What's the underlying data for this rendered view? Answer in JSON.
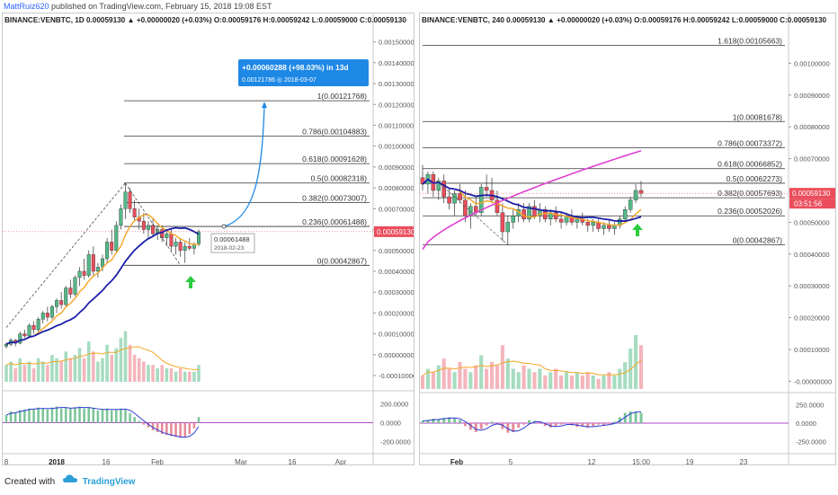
{
  "header": {
    "author": "MattRuiz620",
    "published": "published on TradingView.com, February 15, 2018 19:08 EST"
  },
  "footer": {
    "created_with": "Created with",
    "brand": "TradingView"
  },
  "colors": {
    "up": "#53b987",
    "down": "#eb4d5c",
    "ma_orange": "#f5a623",
    "ma_blue": "#1a1ea8",
    "ma_magenta": "#e040d0",
    "fib_line": "#222222",
    "price_badge": "#eb4d5c",
    "projection": "#1e88e5",
    "arrow_green": "#2ecc40"
  },
  "chart_data": [
    {
      "type": "line",
      "symbol_line": "BINANCE:VENBTC, 1D  0.00059130 ▲ +0.00000020 (+0.03%) O:0.00059176 H:0.00059242 L:0.00059000 C:0.00059130",
      "interval": "1D",
      "price_axis": {
        "ticks": [
          "0.00150000",
          "0.00140000",
          "0.00130000",
          "0.00120000",
          "0.00110000",
          "0.00100000",
          "0.00090000",
          "0.00080000",
          "0.00070000",
          "0.00060000",
          "0.00050000",
          "0.00040000",
          "0.00030000",
          "0.00020000",
          "0.00010000",
          "0.00000000",
          "-0.00010000"
        ],
        "range": [
          -0.00013,
          0.00155
        ]
      },
      "oscillator_axis": {
        "ticks": [
          "200.0000",
          "0.0000",
          "-200.0000"
        ],
        "range": [
          -270,
          280
        ]
      },
      "x_axis_labels": [
        "8",
        "2018",
        "16",
        "Feb",
        "Mar",
        "16",
        "Apr"
      ],
      "current_price_label": "0.00059130",
      "fib_levels": [
        {
          "ratio": 1,
          "price": 0.00121768,
          "label": "1(0.00121768)"
        },
        {
          "ratio": 0.786,
          "price": 0.00104883,
          "label": "0.786(0.00104883)"
        },
        {
          "ratio": 0.618,
          "price": 0.00091628,
          "label": "0.618(0.00091628)"
        },
        {
          "ratio": 0.5,
          "price": 0.00082318,
          "label": "0.5(0.00082318)"
        },
        {
          "ratio": 0.382,
          "price": 0.00073007,
          "label": "0.382(0.00073007)"
        },
        {
          "ratio": 0.236,
          "price": 0.00061488,
          "label": "0.236(0.00061488)"
        },
        {
          "ratio": 0,
          "price": 0.00042867,
          "label": "0(0.00042867)"
        }
      ],
      "projection": {
        "label": "+0.00060288 (+98.03%) in 13d",
        "sublabel": "0.00121786  ◎ 2018-03-07",
        "target_price": 0.00121786
      },
      "point_marker": {
        "price_label": "0.00061488",
        "date_label": "2018-02-23",
        "price": 0.00061488
      },
      "candles": [
        [
          4e-05,
          6e-05,
          3e-05,
          5e-05
        ],
        [
          5e-05,
          8e-05,
          4e-05,
          7e-05
        ],
        [
          7e-05,
          7.5e-05,
          4e-05,
          5.5e-05
        ],
        [
          5.5e-05,
          0.00011,
          5e-05,
          0.0001
        ],
        [
          0.0001,
          0.00012,
          8e-05,
          9e-05
        ],
        [
          9e-05,
          0.00015,
          8.5e-05,
          0.00014
        ],
        [
          0.00014,
          0.00016,
          0.0001,
          0.00012
        ],
        [
          0.00012,
          0.00018,
          0.00011,
          0.00017
        ],
        [
          0.00017,
          0.00021,
          0.00015,
          0.0002
        ],
        [
          0.0002,
          0.00023,
          0.00016,
          0.00018
        ],
        [
          0.00018,
          0.00024,
          0.00017,
          0.00023
        ],
        [
          0.00023,
          0.00027,
          0.0002,
          0.00026
        ],
        [
          0.00026,
          0.0003,
          0.00022,
          0.00024
        ],
        [
          0.00024,
          0.00033,
          0.00023,
          0.00032
        ],
        [
          0.00032,
          0.00036,
          0.00027,
          0.00029
        ],
        [
          0.00029,
          0.00038,
          0.00028,
          0.00037
        ],
        [
          0.00037,
          0.00042,
          0.00033,
          0.0004
        ],
        [
          0.0004,
          0.00046,
          0.00036,
          0.00038
        ],
        [
          0.00038,
          0.0005,
          0.00037,
          0.00048
        ],
        [
          0.00048,
          0.00052,
          0.00038,
          0.0004
        ],
        [
          0.0004,
          0.00044,
          0.00037,
          0.00042
        ],
        [
          0.00042,
          0.00048,
          0.0004,
          0.00046
        ],
        [
          0.00046,
          0.00056,
          0.00044,
          0.00054
        ],
        [
          0.00054,
          0.0006,
          0.00048,
          0.0005
        ],
        [
          0.0005,
          0.00064,
          0.00049,
          0.00062
        ],
        [
          0.00062,
          0.00072,
          0.0006,
          0.0007
        ],
        [
          0.0007,
          0.000823,
          0.00065,
          0.00078
        ],
        [
          0.00078,
          0.0008,
          0.00068,
          0.0007
        ],
        [
          0.0007,
          0.00074,
          0.00064,
          0.00066
        ],
        [
          0.00066,
          0.0007,
          0.0006,
          0.00064
        ],
        [
          0.00064,
          0.00068,
          0.00058,
          0.0006
        ],
        [
          0.0006,
          0.00064,
          0.00056,
          0.00062
        ],
        [
          0.00062,
          0.00065,
          0.00057,
          0.00058
        ],
        [
          0.00058,
          0.00062,
          0.00055,
          0.0006
        ],
        [
          0.0006,
          0.00062,
          0.00054,
          0.00056
        ],
        [
          0.00056,
          0.0006,
          0.00052,
          0.00058
        ],
        [
          0.00058,
          0.0006,
          0.0005,
          0.00052
        ],
        [
          0.00052,
          0.00056,
          0.00048,
          0.00054
        ],
        [
          0.00054,
          0.00056,
          0.00047,
          0.0005
        ],
        [
          0.0005,
          0.00054,
          0.00044,
          0.00052
        ],
        [
          0.00052,
          0.00056,
          0.0005,
          0.00051
        ],
        [
          0.00051,
          0.00054,
          0.00048,
          0.00053
        ],
        [
          0.00053,
          0.0006,
          0.00052,
          0.00059
        ]
      ],
      "volume": [
        0.5,
        0.6,
        0.4,
        0.7,
        0.5,
        0.6,
        0.4,
        0.7,
        0.6,
        0.5,
        0.8,
        0.7,
        0.6,
        0.9,
        0.7,
        0.8,
        1.0,
        0.7,
        1.2,
        0.9,
        0.6,
        0.7,
        1.1,
        0.8,
        1.0,
        1.3,
        1.5,
        1.1,
        0.8,
        0.7,
        0.6,
        0.5,
        0.5,
        0.4,
        0.5,
        0.4,
        0.4,
        0.3,
        0.4,
        0.3,
        0.3,
        0.3,
        0.5
      ],
      "oscillator": [
        80,
        120,
        110,
        130,
        140,
        150,
        140,
        160,
        150,
        140,
        160,
        170,
        150,
        160,
        150,
        160,
        170,
        150,
        160,
        150,
        130,
        140,
        150,
        130,
        140,
        150,
        140,
        100,
        60,
        20,
        -20,
        -50,
        -80,
        -100,
        -120,
        -130,
        -140,
        -150,
        -160,
        -150,
        -120,
        -60,
        60
      ]
    },
    {
      "type": "line",
      "symbol_line": "BINANCE:VENBTC, 240  0.00059130 ▲ +0.00000020 (+0.03%) O:0.00059176 H:0.00059242 L:0.00059000 C:0.00059130",
      "interval": "240",
      "price_axis": {
        "ticks": [
          "0.00100000",
          "0.00090000",
          "0.00080000",
          "0.00070000",
          "0.00060000",
          "0.00050000",
          "0.00040000",
          "0.00030000",
          "0.00020000",
          "0.00010000",
          "-0.00000000"
        ],
        "range": [
          -3e-05,
          0.0011
        ]
      },
      "oscillator_axis": {
        "ticks": [
          "250.0000",
          "0.0000",
          "-250.0000"
        ],
        "range": [
          -340,
          340
        ]
      },
      "x_axis_labels": [
        "Feb",
        "5",
        "12",
        "15:00",
        "19",
        "23"
      ],
      "current_price_label": "0.00059130",
      "countdown_label": "03:51:56",
      "fib_levels": [
        {
          "ratio": 1.618,
          "price": 0.00105663,
          "label": "1.618(0.00105663)"
        },
        {
          "ratio": 1,
          "price": 0.00081678,
          "label": "1(0.00081678)"
        },
        {
          "ratio": 0.786,
          "price": 0.00073372,
          "label": "0.786(0.00073372)"
        },
        {
          "ratio": 0.618,
          "price": 0.00066852,
          "label": "0.618(0.00066852)"
        },
        {
          "ratio": 0.5,
          "price": 0.00062273,
          "label": "0.5(0.00062273)"
        },
        {
          "ratio": 0.382,
          "price": 0.00057693,
          "label": "0.382(0.00057693)"
        },
        {
          "ratio": 0.236,
          "price": 0.00052026,
          "label": "0.236(0.00052026)"
        },
        {
          "ratio": 0,
          "price": 0.00042867,
          "label": "0(0.00042867)"
        }
      ],
      "candles": [
        [
          0.00064,
          0.00068,
          0.0006,
          0.00062
        ],
        [
          0.00062,
          0.00066,
          0.00059,
          0.00065
        ],
        [
          0.00065,
          0.00066,
          0.00058,
          0.0006
        ],
        [
          0.0006,
          0.00064,
          0.00057,
          0.00063
        ],
        [
          0.00063,
          0.00065,
          0.00056,
          0.00058
        ],
        [
          0.00058,
          0.00061,
          0.00054,
          0.00056
        ],
        [
          0.00056,
          0.0006,
          0.00052,
          0.00059
        ],
        [
          0.00059,
          0.00062,
          0.00056,
          0.00057
        ],
        [
          0.00057,
          0.0006,
          0.0005,
          0.00052
        ],
        [
          0.00052,
          0.00056,
          0.00048,
          0.00055
        ],
        [
          0.00055,
          0.00058,
          0.00052,
          0.00053
        ],
        [
          0.00053,
          0.00062,
          0.00052,
          0.00061
        ],
        [
          0.00061,
          0.00065,
          0.00058,
          0.0006
        ],
        [
          0.0006,
          0.00064,
          0.00056,
          0.00057
        ],
        [
          0.00057,
          0.0006,
          0.00052,
          0.00053
        ],
        [
          0.00053,
          0.00056,
          0.00044,
          0.00047
        ],
        [
          0.00047,
          0.00052,
          0.00043,
          0.0005
        ],
        [
          0.0005,
          0.00054,
          0.00048,
          0.00052
        ],
        [
          0.00052,
          0.00056,
          0.0005,
          0.00054
        ],
        [
          0.00054,
          0.00056,
          0.0005,
          0.00051
        ],
        [
          0.00051,
          0.00056,
          0.0005,
          0.00055
        ],
        [
          0.00055,
          0.00057,
          0.00051,
          0.00052
        ],
        [
          0.00052,
          0.00056,
          0.0005,
          0.00054
        ],
        [
          0.00054,
          0.00055,
          0.0005,
          0.00051
        ],
        [
          0.00051,
          0.00054,
          0.00049,
          0.00053
        ],
        [
          0.00053,
          0.00055,
          0.0005,
          0.00051
        ],
        [
          0.00051,
          0.00053,
          0.00048,
          0.0005
        ],
        [
          0.0005,
          0.00053,
          0.00049,
          0.00052
        ],
        [
          0.00052,
          0.00054,
          0.00049,
          0.0005
        ],
        [
          0.0005,
          0.00052,
          0.00048,
          0.00051
        ],
        [
          0.00051,
          0.00053,
          0.00049,
          0.0005
        ],
        [
          0.0005,
          0.00051,
          0.00047,
          0.00049
        ],
        [
          0.00049,
          0.00051,
          0.00047,
          0.0005
        ],
        [
          0.0005,
          0.00051,
          0.00047,
          0.00048
        ],
        [
          0.00048,
          0.0005,
          0.00046,
          0.00049
        ],
        [
          0.00049,
          0.00051,
          0.00047,
          0.00048
        ],
        [
          0.00048,
          0.0005,
          0.00046,
          0.00049
        ],
        [
          0.00049,
          0.00052,
          0.00048,
          0.00051
        ],
        [
          0.00051,
          0.00055,
          0.0005,
          0.00054
        ],
        [
          0.00054,
          0.00058,
          0.00053,
          0.00057
        ],
        [
          0.00057,
          0.00062,
          0.00056,
          0.0006
        ],
        [
          0.0006,
          0.00063,
          0.00058,
          0.000591
        ]
      ],
      "volume": [
        0.4,
        0.6,
        0.5,
        0.7,
        0.9,
        0.6,
        0.5,
        0.8,
        0.6,
        0.5,
        0.7,
        1.0,
        0.6,
        0.8,
        0.7,
        1.3,
        0.9,
        0.6,
        0.5,
        0.7,
        0.6,
        0.5,
        0.6,
        0.4,
        0.5,
        0.6,
        0.4,
        0.5,
        0.4,
        0.5,
        0.4,
        0.5,
        0.4,
        0.3,
        0.4,
        0.5,
        0.4,
        0.6,
        0.8,
        1.2,
        1.6,
        1.3
      ],
      "oscillator": [
        30,
        40,
        60,
        50,
        70,
        80,
        60,
        40,
        -40,
        -90,
        -120,
        -80,
        -30,
        20,
        -20,
        -80,
        -130,
        -120,
        -60,
        -20,
        40,
        30,
        -10,
        -40,
        -60,
        -40,
        -20,
        0,
        -30,
        -50,
        -40,
        -60,
        -40,
        -20,
        -30,
        -10,
        20,
        80,
        140,
        160,
        150,
        140
      ]
    }
  ]
}
